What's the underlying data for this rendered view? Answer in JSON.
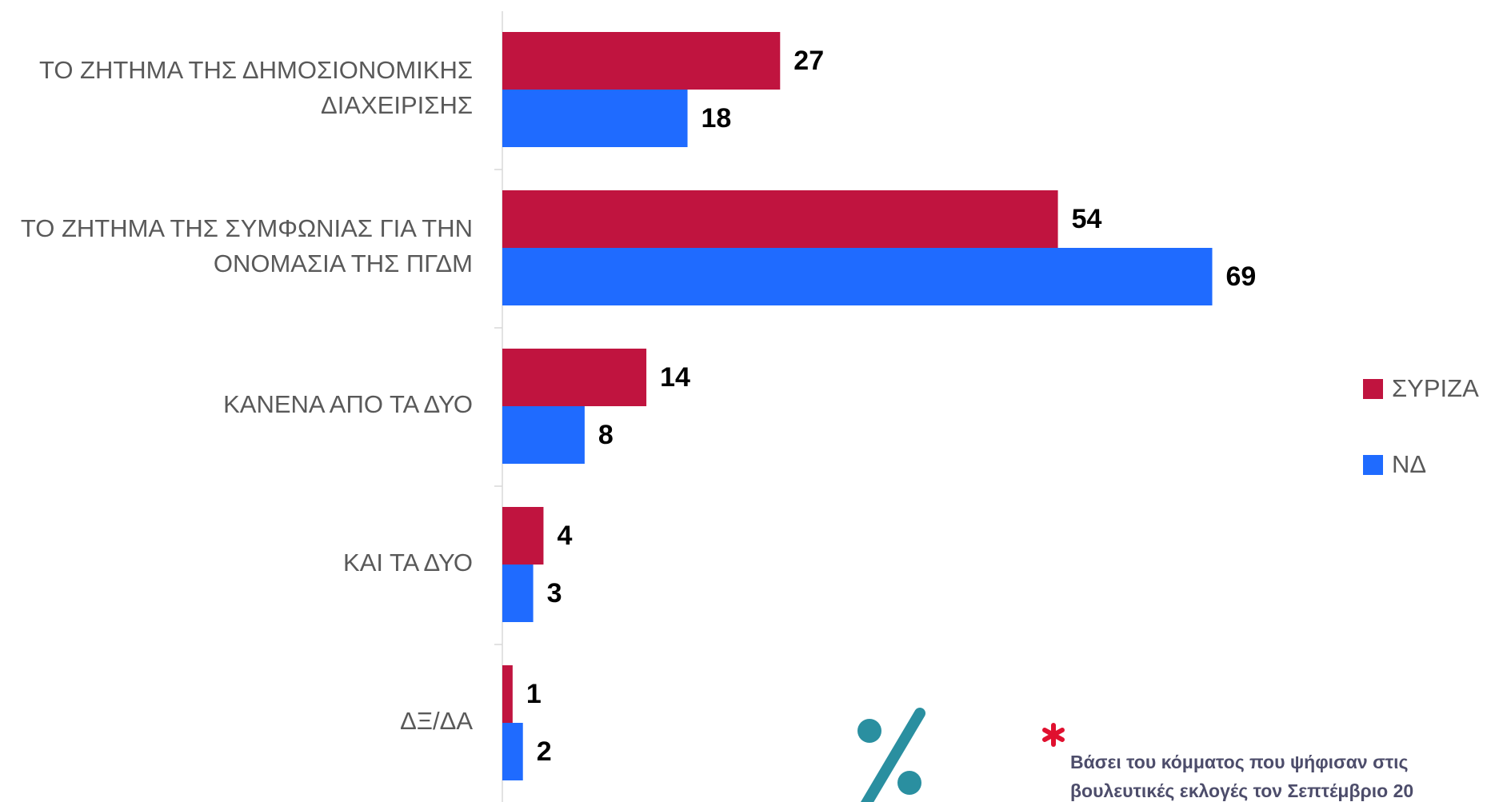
{
  "chart_data": {
    "type": "barh",
    "categories": [
      "ΤΟ ΖΗΤΗΜΑ ΤΗΣ ΔΗΜΟΣΙΟΝΟΜΙΚΗΣ ΔΙΑΧΕΙΡΙΣΗΣ",
      "ΤΟ ΖΗΤΗΜΑ ΤΗΣ ΣΥΜΦΩΝΙΑΣ ΓΙΑ ΤΗΝ ΟΝΟΜΑΣΙΑ ΤΗΣ ΠΓΔΜ",
      "ΚΑΝΕΝΑ ΑΠΟ ΤΑ ΔΥΟ",
      "ΚΑΙ ΤΑ ΔΥΟ",
      "ΔΞ/ΔΑ"
    ],
    "series": [
      {
        "name": "ΣΥΡΙΖΑ",
        "color": "#c0143f",
        "values": [
          27,
          54,
          14,
          4,
          1
        ]
      },
      {
        "name": "ΝΔ",
        "color": "#1f6bff",
        "values": [
          18,
          69,
          8,
          3,
          2
        ]
      }
    ],
    "xlim": [
      0,
      80
    ],
    "legend": "right",
    "note": [
      "Βάσει του κόμματος που ψήφισαν στις",
      "βουλευτικές εκλογές τον Σεπτέμβριο 20"
    ]
  }
}
